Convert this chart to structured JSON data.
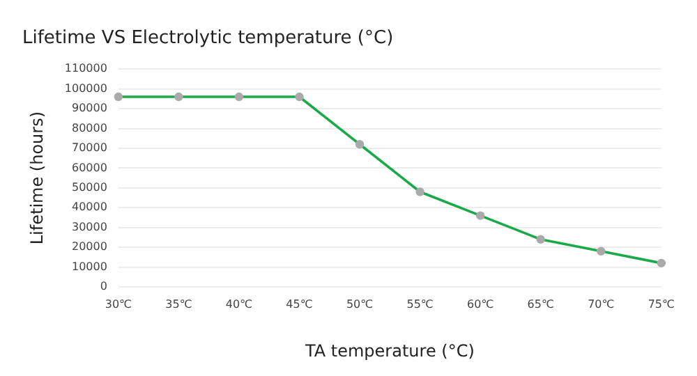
{
  "chart_data": {
    "type": "line",
    "title": "Lifetime VS Electrolytic temperature (°C)",
    "xlabel": "TA temperature (°C)",
    "ylabel": "Lifetime (hours)",
    "categories": [
      "30℃",
      "35℃",
      "40℃",
      "45℃",
      "50℃",
      "55℃",
      "60℃",
      "65℃",
      "70℃",
      "75℃"
    ],
    "series": [
      {
        "color": "#1aaa4a",
        "values": [
          96000,
          96000,
          96000,
          96000,
          72000,
          48000,
          36000,
          24000,
          18000,
          12000
        ]
      }
    ],
    "ylim": [
      0,
      110000
    ],
    "yticks": [
      0,
      10000,
      20000,
      30000,
      40000,
      50000,
      60000,
      70000,
      80000,
      90000,
      100000,
      110000
    ],
    "grid": "y",
    "marker": "circle",
    "line_style": "solid"
  }
}
